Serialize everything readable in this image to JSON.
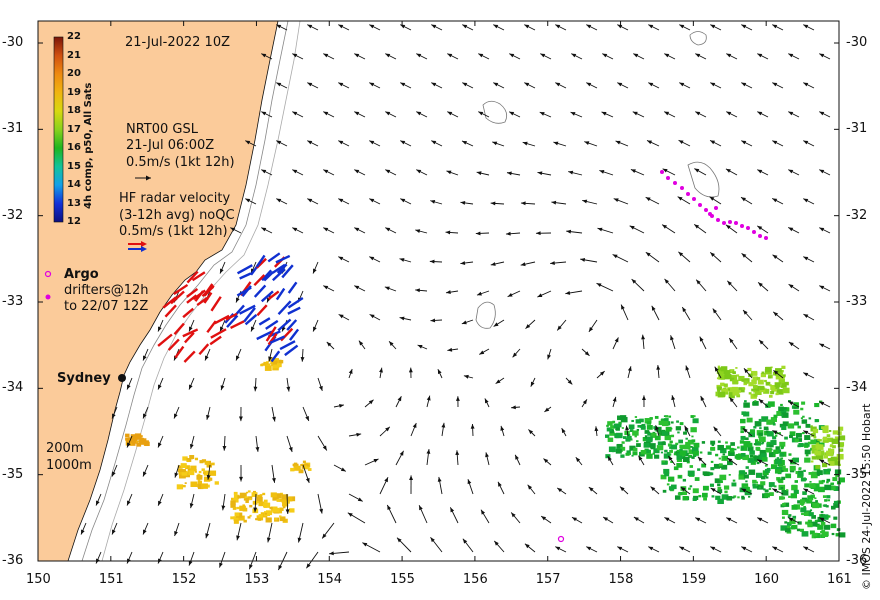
{
  "map": {
    "timestamp": "21-Jul-2022 10Z",
    "gsl": {
      "line1": "NRT00 GSL",
      "line2": "21-Jul 06:00Z",
      "line3": "0.5m/s (1kt 12h)"
    },
    "radar": {
      "line1": "HF radar velocity",
      "line2": "(3-12h avg) noQC",
      "line3": "0.5m/s (1kt 12h)"
    },
    "argo": "Argo",
    "drifters": {
      "line1": "drifters@12h",
      "line2": "to 22/07 12Z"
    },
    "city": "Sydney",
    "isobaths": {
      "shallow": "200m",
      "deep": "1000m"
    },
    "credit": "© IMOS 24-Jul-2022 15:50 Hobart",
    "x_ticks": [
      "150",
      "151",
      "152",
      "153",
      "154",
      "155",
      "156",
      "157",
      "158",
      "159",
      "160",
      "161"
    ],
    "y_ticks": [
      "-30",
      "-31",
      "-32",
      "-33",
      "-34",
      "-35",
      "-36"
    ],
    "colors": {
      "land": "#fbcb9a",
      "gsl_arrow": "#111111",
      "radar_a": "#e01010",
      "radar_b": "#1030d0",
      "argo": "#e000e0"
    }
  },
  "colorbar": {
    "title": "4h comp, p50, All Sats",
    "ticks": [
      "22",
      "21",
      "20",
      "19",
      "18",
      "17",
      "16",
      "15",
      "14",
      "13",
      "12"
    ],
    "range": [
      12,
      22
    ]
  }
}
